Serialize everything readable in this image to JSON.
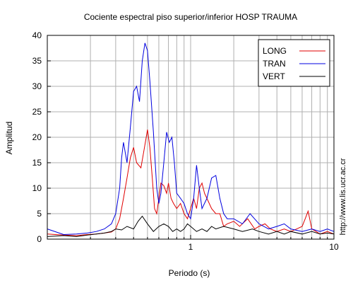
{
  "chart_data": {
    "type": "line",
    "title": "Cociente espectral piso superior/inferior  HOSP TRAUMA",
    "xlabel": "Periodo (s)",
    "ylabel": "Amplitud",
    "x_scale": "log",
    "xlim": [
      0.1,
      10
    ],
    "ylim": [
      0,
      40
    ],
    "x_tick_labels": [
      "1",
      "10"
    ],
    "y_ticks": [
      0,
      5,
      10,
      15,
      20,
      25,
      30,
      35,
      40
    ],
    "grid": true,
    "legend_position": "top-right",
    "side_text": "http://www.lis.ucr.ac.cr",
    "series": [
      {
        "name": "LONG",
        "color": "#e00000",
        "x": [
          0.1,
          0.13,
          0.16,
          0.19,
          0.22,
          0.25,
          0.28,
          0.3,
          0.32,
          0.34,
          0.36,
          0.38,
          0.4,
          0.42,
          0.45,
          0.47,
          0.49,
          0.5,
          0.52,
          0.54,
          0.56,
          0.58,
          0.6,
          0.62,
          0.65,
          0.68,
          0.7,
          0.73,
          0.76,
          0.8,
          0.85,
          0.9,
          0.95,
          1.0,
          1.05,
          1.1,
          1.15,
          1.2,
          1.25,
          1.3,
          1.4,
          1.5,
          1.6,
          1.7,
          1.8,
          2.0,
          2.2,
          2.5,
          2.8,
          3.0,
          3.3,
          3.6,
          4.0,
          4.5,
          5.0,
          5.5,
          6.0,
          6.3,
          6.6,
          7.0,
          7.5,
          8.0,
          9.0,
          10.0
        ],
        "y": [
          1.0,
          0.8,
          0.7,
          0.9,
          1.0,
          1.2,
          1.4,
          2.0,
          4.0,
          8.0,
          12.0,
          16.0,
          18.0,
          15.0,
          14.0,
          17.0,
          20.0,
          21.5,
          18.0,
          12.0,
          6.0,
          5.0,
          8.0,
          11.0,
          10.5,
          9.0,
          11.0,
          8.0,
          7.0,
          6.0,
          7.0,
          5.0,
          4.0,
          6.0,
          8.0,
          6.0,
          10.0,
          11.0,
          9.0,
          8.0,
          6.0,
          5.0,
          5.0,
          2.5,
          3.0,
          3.5,
          2.5,
          4.0,
          2.0,
          2.5,
          3.0,
          2.0,
          1.5,
          2.0,
          1.5,
          2.0,
          2.5,
          4.0,
          5.5,
          2.0,
          1.5,
          1.0,
          1.5,
          1.0
        ]
      },
      {
        "name": "TRAN",
        "color": "#0000e0",
        "x": [
          0.1,
          0.13,
          0.16,
          0.19,
          0.22,
          0.25,
          0.28,
          0.3,
          0.32,
          0.33,
          0.34,
          0.36,
          0.38,
          0.4,
          0.42,
          0.44,
          0.46,
          0.48,
          0.5,
          0.52,
          0.55,
          0.58,
          0.6,
          0.62,
          0.65,
          0.68,
          0.71,
          0.74,
          0.77,
          0.8,
          0.85,
          0.9,
          0.95,
          1.0,
          1.05,
          1.1,
          1.15,
          1.2,
          1.3,
          1.4,
          1.5,
          1.6,
          1.7,
          1.8,
          2.0,
          2.3,
          2.6,
          3.0,
          3.5,
          4.0,
          4.5,
          5.0,
          6.0,
          7.0,
          8.0,
          9.0,
          10.0
        ],
        "y": [
          2.0,
          0.9,
          1.0,
          1.2,
          1.5,
          2.0,
          3.0,
          5.0,
          10.0,
          16.0,
          19.0,
          15.0,
          22.0,
          29.0,
          30.0,
          27.0,
          35.0,
          38.5,
          37.0,
          31.0,
          21.0,
          10.0,
          7.0,
          9.0,
          15.0,
          21.0,
          19.0,
          20.0,
          15.0,
          9.0,
          8.0,
          7.0,
          5.0,
          4.0,
          8.0,
          14.5,
          10.0,
          6.0,
          8.0,
          12.0,
          12.5,
          8.0,
          5.0,
          4.0,
          4.0,
          3.0,
          5.0,
          3.0,
          2.0,
          2.5,
          3.0,
          2.0,
          1.5,
          2.0,
          1.5,
          2.0,
          1.5
        ]
      },
      {
        "name": "VERT",
        "color": "#000000",
        "x": [
          0.1,
          0.13,
          0.16,
          0.19,
          0.22,
          0.25,
          0.28,
          0.3,
          0.33,
          0.36,
          0.4,
          0.43,
          0.46,
          0.5,
          0.55,
          0.6,
          0.65,
          0.7,
          0.75,
          0.8,
          0.85,
          0.9,
          0.95,
          1.0,
          1.1,
          1.2,
          1.3,
          1.4,
          1.5,
          1.7,
          2.0,
          2.3,
          2.7,
          3.0,
          3.5,
          4.0,
          4.5,
          5.0,
          6.0,
          7.0,
          8.0,
          9.0,
          10.0
        ],
        "y": [
          0.5,
          0.7,
          0.5,
          0.8,
          1.0,
          1.2,
          1.5,
          2.0,
          1.8,
          2.5,
          2.0,
          3.5,
          4.5,
          3.0,
          1.5,
          2.5,
          3.0,
          2.5,
          1.5,
          2.0,
          1.5,
          2.0,
          3.0,
          2.5,
          1.5,
          2.0,
          1.5,
          2.5,
          2.0,
          2.5,
          2.0,
          1.5,
          2.0,
          1.5,
          1.0,
          1.5,
          1.0,
          1.5,
          1.0,
          1.5,
          1.0,
          1.2,
          1.0
        ]
      }
    ]
  }
}
